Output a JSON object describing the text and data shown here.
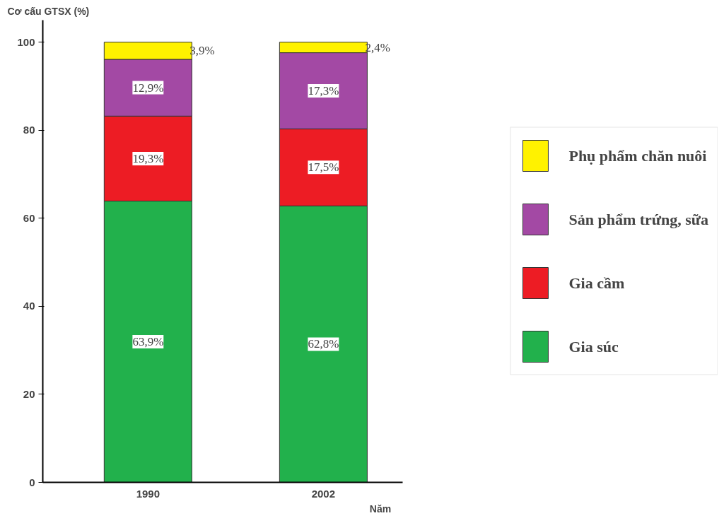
{
  "chart_data": {
    "type": "bar",
    "stacked": true,
    "categories": [
      "1990",
      "2002"
    ],
    "series": [
      {
        "name": "Gia súc",
        "color": "#22b14c",
        "values": [
          63.9,
          62.8
        ],
        "value_labels": [
          "63,9%",
          "62,8%"
        ]
      },
      {
        "name": "Gia cầm",
        "color": "#ed1c24",
        "values": [
          19.3,
          17.5
        ],
        "value_labels": [
          "19,3%",
          "17,5%"
        ]
      },
      {
        "name": "Sản phẩm trứng, sữa",
        "color": "#a349a4",
        "values": [
          12.9,
          17.3
        ],
        "value_labels": [
          "12,9%",
          "17,3%"
        ]
      },
      {
        "name": "Phụ phẩm chăn nuôi",
        "color": "#fff200",
        "values": [
          3.9,
          2.4
        ],
        "value_labels": [
          "3,9%",
          "2,4%"
        ]
      }
    ],
    "ylabel": "Cơ cấu GTSX (%)",
    "xlabel": "Năm",
    "ylim": [
      0,
      105
    ],
    "yticks": [
      0,
      20,
      40,
      60,
      80,
      100
    ],
    "grid": false,
    "legend": "right"
  }
}
